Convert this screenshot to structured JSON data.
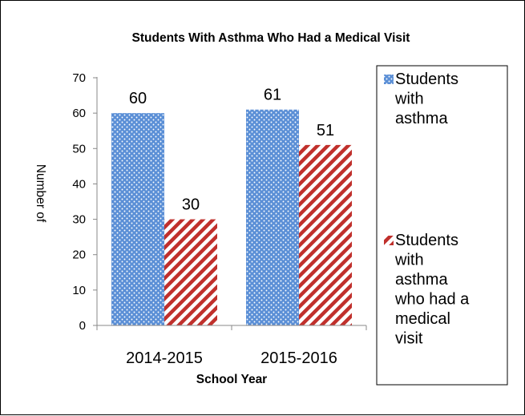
{
  "chart_data": {
    "type": "bar",
    "title": "Students With Asthma Who Had a Medical Visit",
    "xlabel": "School Year",
    "ylabel": "Number of",
    "categories": [
      "2014-2015",
      "2015-2016"
    ],
    "series": [
      {
        "name": "Students with asthma",
        "legend_lines": [
          "Students",
          "with",
          "asthma"
        ],
        "values": [
          60,
          61
        ],
        "color": "#5b8fd6",
        "pattern": "dots"
      },
      {
        "name": "Students with asthma who had a medical visit",
        "legend_lines": [
          "Students",
          "with",
          "asthma",
          "who had a",
          "medical",
          "visit"
        ],
        "values": [
          30,
          51
        ],
        "color": "#c0302c",
        "pattern": "diagonal-stripes"
      }
    ],
    "ylim": [
      0,
      70
    ],
    "yticks": [
      0,
      10,
      20,
      30,
      40,
      50,
      60,
      70
    ],
    "grid": false,
    "legend": "right",
    "data_labels": true
  }
}
